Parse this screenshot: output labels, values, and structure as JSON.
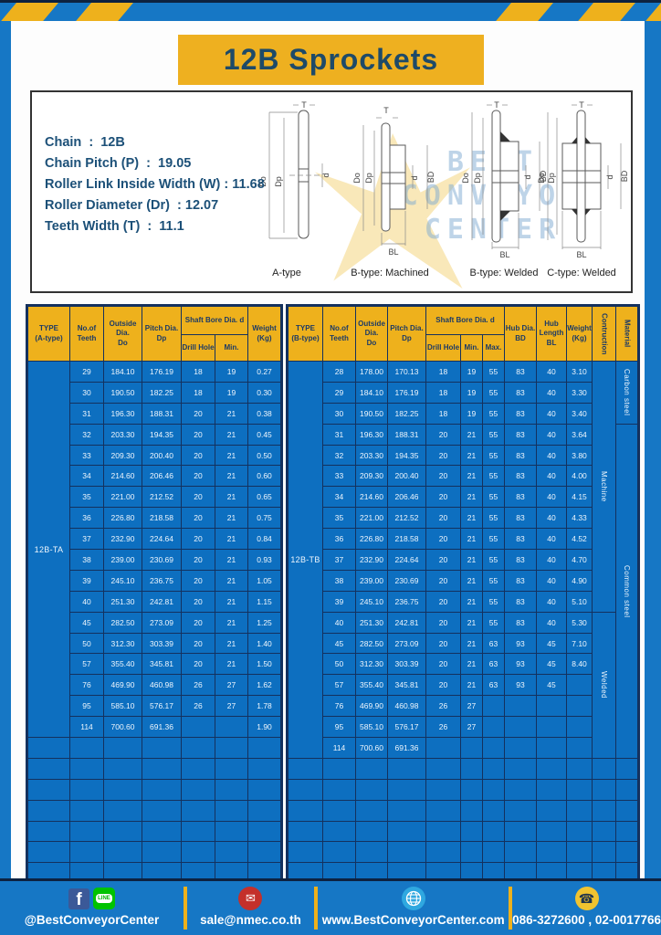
{
  "page_title": "12B Sprockets",
  "diagram": {
    "specs": [
      "Chain  :  12B",
      "Chain Pitch (P)  :  19.05",
      "Roller Link Inside Width (W) : 11.68",
      "Roller Diameter (Dr)  : 12.07",
      "Teeth Width (T)  :  11.1"
    ],
    "watermark": [
      "BEST",
      "CONVEYOR",
      "CENTER"
    ],
    "drawings": [
      {
        "label": "A-type",
        "dims": [
          "T",
          "Do",
          "Dp",
          "d"
        ]
      },
      {
        "label": "B-type: Machined",
        "dims": [
          "T",
          "Do",
          "Dp",
          "d",
          "BD",
          "BL"
        ]
      },
      {
        "label": "B-type: Welded",
        "dims": [
          "T",
          "Do",
          "Dp",
          "d",
          "BD",
          "BL"
        ]
      },
      {
        "label": "C-type: Welded",
        "dims": [
          "T",
          "Do",
          "Dp",
          "d",
          "BD",
          "BL"
        ]
      }
    ]
  },
  "table_a": {
    "type_label": "12B-TA",
    "headers": {
      "type": "TYPE\n(A-type)",
      "teeth": "No.of\nTeeth",
      "outside": "Outside\nDia.\nDo",
      "pitch": "Pitch Dia.\nDp",
      "shaft_bore": "Shaft Bore Dia. d",
      "drill": "Drill Hole",
      "min": "Min.",
      "weight": "Weight\n(Kg)"
    },
    "rows": [
      [
        "29",
        "184.10",
        "176.19",
        "18",
        "19",
        "0.27"
      ],
      [
        "30",
        "190.50",
        "182.25",
        "18",
        "19",
        "0.30"
      ],
      [
        "31",
        "196.30",
        "188.31",
        "20",
        "21",
        "0.38"
      ],
      [
        "32",
        "203.30",
        "194.35",
        "20",
        "21",
        "0.45"
      ],
      [
        "33",
        "209.30",
        "200.40",
        "20",
        "21",
        "0.50"
      ],
      [
        "34",
        "214.60",
        "206.46",
        "20",
        "21",
        "0.60"
      ],
      [
        "35",
        "221.00",
        "212.52",
        "20",
        "21",
        "0.65"
      ],
      [
        "36",
        "226.80",
        "218.58",
        "20",
        "21",
        "0.75"
      ],
      [
        "37",
        "232.90",
        "224.64",
        "20",
        "21",
        "0.84"
      ],
      [
        "38",
        "239.00",
        "230.69",
        "20",
        "21",
        "0.93"
      ],
      [
        "39",
        "245.10",
        "236.75",
        "20",
        "21",
        "1.05"
      ],
      [
        "40",
        "251.30",
        "242.81",
        "20",
        "21",
        "1.15"
      ],
      [
        "45",
        "282.50",
        "273.09",
        "20",
        "21",
        "1.25"
      ],
      [
        "50",
        "312.30",
        "303.39",
        "20",
        "21",
        "1.40"
      ],
      [
        "57",
        "355.40",
        "345.81",
        "20",
        "21",
        "1.50"
      ],
      [
        "76",
        "469.90",
        "460.98",
        "26",
        "27",
        "1.62"
      ],
      [
        "95",
        "585.10",
        "576.17",
        "26",
        "27",
        "1.78"
      ],
      [
        "114",
        "700.60",
        "691.36",
        "",
        "",
        "1.90"
      ]
    ],
    "empty_rows": 7
  },
  "table_b": {
    "type_label": "12B-TB",
    "headers": {
      "type": "TYPE\n(B-type)",
      "teeth": "No.of\nTeeth",
      "outside": "Outside\nDia.\nDo",
      "pitch": "Pitch Dia.\nDp",
      "shaft_bore": "Shaft Bore Dia. d",
      "drill": "Drill Hole",
      "min": "Min.",
      "max": "Max.",
      "hub_dia": "Hub Dia.\nBD",
      "hub_len": "Hub\nLength\nBL",
      "weight": "Weight\n(Kg)",
      "construction": "Contruction",
      "material": "Material"
    },
    "rows": [
      [
        "28",
        "178.00",
        "170.13",
        "18",
        "19",
        "55",
        "83",
        "40",
        "3.10"
      ],
      [
        "29",
        "184.10",
        "176.19",
        "18",
        "19",
        "55",
        "83",
        "40",
        "3.30"
      ],
      [
        "30",
        "190.50",
        "182.25",
        "18",
        "19",
        "55",
        "83",
        "40",
        "3.40"
      ],
      [
        "31",
        "196.30",
        "188.31",
        "20",
        "21",
        "55",
        "83",
        "40",
        "3.64"
      ],
      [
        "32",
        "203.30",
        "194.35",
        "20",
        "21",
        "55",
        "83",
        "40",
        "3.80"
      ],
      [
        "33",
        "209.30",
        "200.40",
        "20",
        "21",
        "55",
        "83",
        "40",
        "4.00"
      ],
      [
        "34",
        "214.60",
        "206.46",
        "20",
        "21",
        "55",
        "83",
        "40",
        "4.15"
      ],
      [
        "35",
        "221.00",
        "212.52",
        "20",
        "21",
        "55",
        "83",
        "40",
        "4.33"
      ],
      [
        "36",
        "226.80",
        "218.58",
        "20",
        "21",
        "55",
        "83",
        "40",
        "4.52"
      ],
      [
        "37",
        "232.90",
        "224.64",
        "20",
        "21",
        "55",
        "83",
        "40",
        "4.70"
      ],
      [
        "38",
        "239.00",
        "230.69",
        "20",
        "21",
        "55",
        "83",
        "40",
        "4.90"
      ],
      [
        "39",
        "245.10",
        "236.75",
        "20",
        "21",
        "55",
        "83",
        "40",
        "5.10"
      ],
      [
        "40",
        "251.30",
        "242.81",
        "20",
        "21",
        "55",
        "83",
        "40",
        "5.30"
      ],
      [
        "45",
        "282.50",
        "273.09",
        "20",
        "21",
        "63",
        "93",
        "45",
        "7.10"
      ],
      [
        "50",
        "312.30",
        "303.39",
        "20",
        "21",
        "63",
        "93",
        "45",
        "8.40"
      ],
      [
        "57",
        "355.40",
        "345.81",
        "20",
        "21",
        "63",
        "93",
        "45",
        ""
      ],
      [
        "76",
        "469.90",
        "460.98",
        "26",
        "27",
        "",
        "",
        "",
        ""
      ],
      [
        "95",
        "585.10",
        "576.17",
        "26",
        "27",
        "",
        "",
        "",
        ""
      ],
      [
        "114",
        "700.60",
        "691.36",
        "",
        "",
        "",
        "",
        "",
        ""
      ]
    ],
    "construction_spans": [
      {
        "label": "Machine",
        "start": 0,
        "span": 12
      },
      {
        "label": "Welded",
        "start": 12,
        "span": 7
      }
    ],
    "material_spans": [
      {
        "label": "Carbon steel",
        "start": 0,
        "span": 3
      },
      {
        "label": "Common  steel",
        "start": 3,
        "span": 16
      }
    ],
    "empty_rows": 6
  },
  "footer": {
    "sections": [
      {
        "icon": "facebook-and-line",
        "line_badge": "LINE",
        "label": "@BestConveyorCenter"
      },
      {
        "icon": "email",
        "label": "sale@nmec.co.th"
      },
      {
        "icon": "globe",
        "label": "www.BestConveyorCenter.com"
      },
      {
        "icon": "phone",
        "label": "086-3272600 , 02-0017766"
      }
    ]
  },
  "colors": {
    "page_blue": "#1677c5",
    "cell_blue": "#0d6fc0",
    "border_navy": "#14315e",
    "accent_yellow": "#eeb11c",
    "title_text": "#1e4a68",
    "facebook_blue": "#3b5998",
    "line_green": "#00c300",
    "email_red": "#c4302b",
    "globe_blue": "#2fa8e0",
    "phone_yellow": "#f0c330"
  }
}
